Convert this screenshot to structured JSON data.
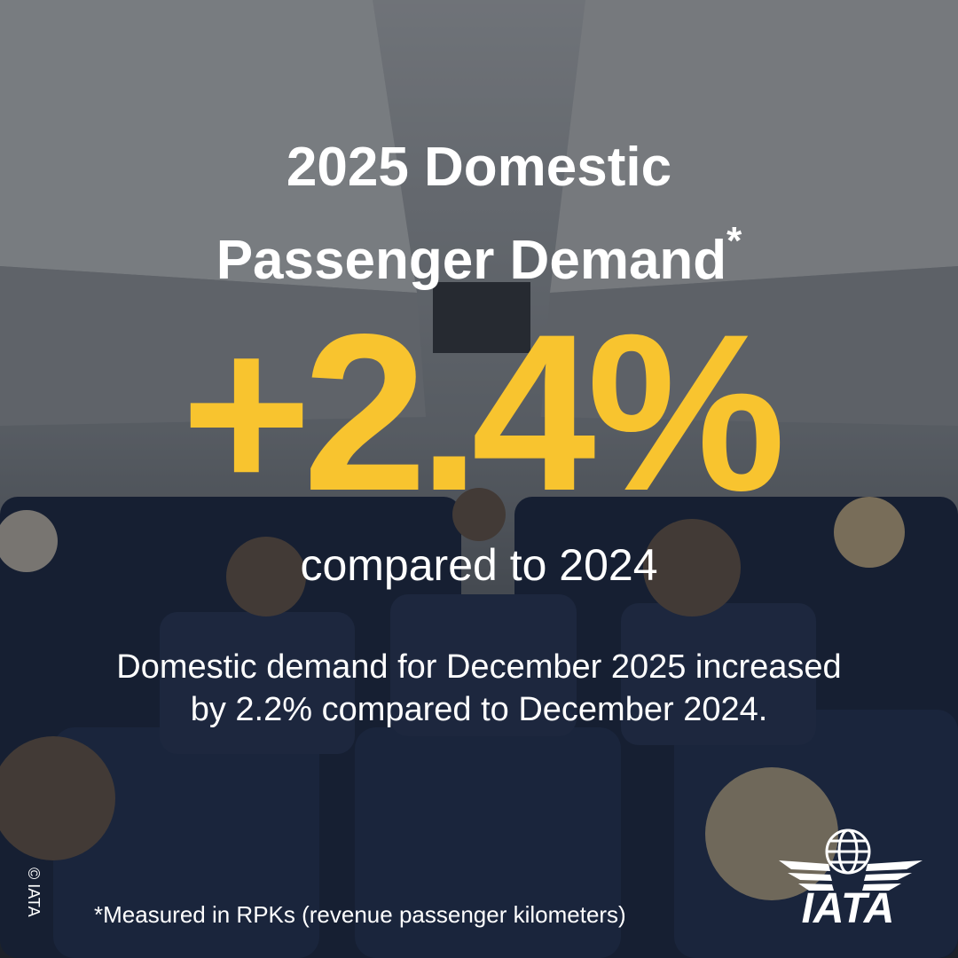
{
  "headline": {
    "lines": [
      "2025 Domestic",
      "Passenger Demand"
    ],
    "asterisk": "*"
  },
  "figure": {
    "value": "+2.4%",
    "comparison": "compared to 2024"
  },
  "description": "Domestic demand for December 2025 increased by 2.2% compared to December 2024.",
  "footnote": "*Measured in RPKs (revenue passenger kilometers)",
  "copyright": "© IATA",
  "logo": {
    "text": "IATA"
  }
}
